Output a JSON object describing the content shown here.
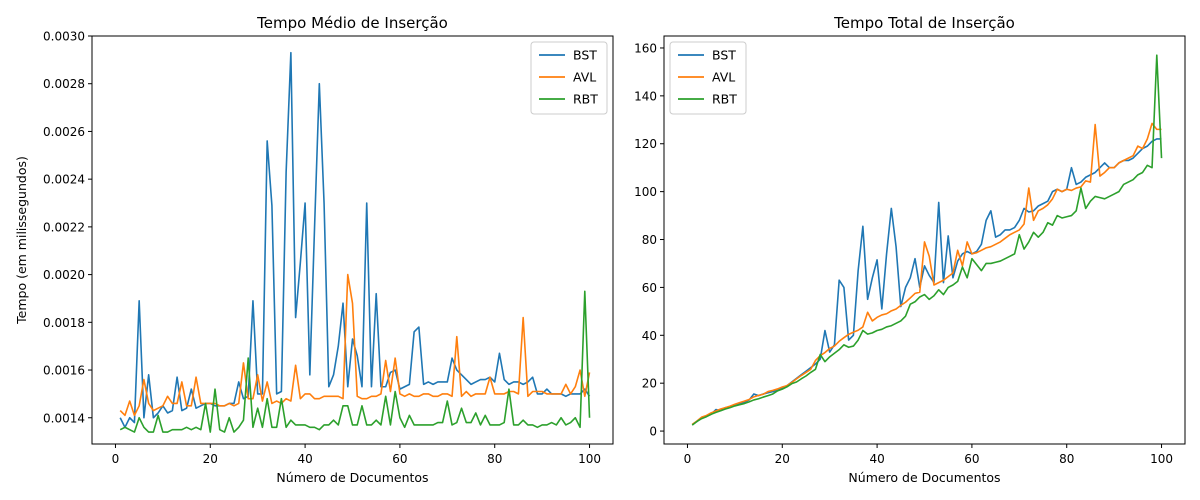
{
  "chart_data": [
    {
      "type": "line",
      "title": "Tempo Médio de Inserção",
      "xlabel": "Número de Documentos",
      "ylabel": "Tempo (em milissegundos)",
      "xlim": [
        -4.95,
        104.95
      ],
      "ylim": [
        0.00129,
        0.003
      ],
      "xticks": [
        0,
        20,
        40,
        60,
        80,
        100
      ],
      "xtick_labels": [
        "0",
        "20",
        "40",
        "60",
        "80",
        "100"
      ],
      "yticks": [
        0.0014,
        0.0016,
        0.0018,
        0.002,
        0.0022,
        0.0024,
        0.0026,
        0.0028,
        0.003
      ],
      "ytick_labels": [
        "0.0014",
        "0.0016",
        "0.0018",
        "0.0020",
        "0.0022",
        "0.0024",
        "0.0026",
        "0.0028",
        "0.0030"
      ],
      "legend_position": "top-right",
      "grid": false,
      "x": [
        1,
        2,
        3,
        4,
        5,
        6,
        7,
        8,
        9,
        10,
        11,
        12,
        13,
        14,
        15,
        16,
        17,
        18,
        19,
        20,
        21,
        22,
        23,
        24,
        25,
        26,
        27,
        28,
        29,
        30,
        31,
        32,
        33,
        34,
        35,
        36,
        37,
        38,
        39,
        40,
        41,
        42,
        43,
        44,
        45,
        46,
        47,
        48,
        49,
        50,
        51,
        52,
        53,
        54,
        55,
        56,
        57,
        58,
        59,
        60,
        61,
        62,
        63,
        64,
        65,
        66,
        67,
        68,
        69,
        70,
        71,
        72,
        73,
        74,
        75,
        76,
        77,
        78,
        79,
        80,
        81,
        82,
        83,
        84,
        85,
        86,
        87,
        88,
        89,
        90,
        91,
        92,
        93,
        94,
        95,
        96,
        97,
        98,
        99,
        100
      ],
      "series": [
        {
          "name": "BST",
          "color": "#1f77b4",
          "values": [
            0.0014,
            0.00136,
            0.0014,
            0.00138,
            0.00189,
            0.0014,
            0.00158,
            0.0014,
            0.00142,
            0.00145,
            0.00142,
            0.00143,
            0.00157,
            0.00143,
            0.00144,
            0.00152,
            0.00144,
            0.00145,
            0.00146,
            0.00146,
            0.00145,
            0.00145,
            0.00145,
            0.00146,
            0.00146,
            0.00155,
            0.00148,
            0.00149,
            0.00189,
            0.0015,
            0.0015,
            0.00256,
            0.00229,
            0.0015,
            0.00151,
            0.00243,
            0.00293,
            0.00182,
            0.00205,
            0.0023,
            0.00158,
            0.0022,
            0.0028,
            0.0023,
            0.00153,
            0.00158,
            0.0017,
            0.00188,
            0.00153,
            0.00173,
            0.00166,
            0.00153,
            0.0023,
            0.00153,
            0.00192,
            0.00153,
            0.00153,
            0.00159,
            0.0016,
            0.00152,
            0.00153,
            0.00154,
            0.00176,
            0.00178,
            0.00154,
            0.00155,
            0.00154,
            0.00155,
            0.00155,
            0.00155,
            0.00165,
            0.0016,
            0.00158,
            0.00156,
            0.00154,
            0.00155,
            0.00156,
            0.00156,
            0.00157,
            0.00155,
            0.00167,
            0.00156,
            0.00154,
            0.00155,
            0.00155,
            0.00154,
            0.00155,
            0.00157,
            0.0015,
            0.0015,
            0.00152,
            0.0015,
            0.0015,
            0.0015,
            0.00149,
            0.0015,
            0.0015,
            0.0015,
            0.00152,
            0.00149
          ]
        },
        {
          "name": "AVL",
          "color": "#ff7f0e",
          "values": [
            0.00143,
            0.00141,
            0.00147,
            0.00141,
            0.00145,
            0.00156,
            0.00146,
            0.00143,
            0.00144,
            0.00145,
            0.00149,
            0.00146,
            0.00146,
            0.00155,
            0.00145,
            0.00145,
            0.00157,
            0.00146,
            0.00146,
            0.00146,
            0.00146,
            0.00145,
            0.00145,
            0.00146,
            0.00145,
            0.00146,
            0.00163,
            0.00148,
            0.00148,
            0.00158,
            0.00147,
            0.00155,
            0.00146,
            0.00147,
            0.00146,
            0.00148,
            0.00147,
            0.00162,
            0.00148,
            0.0015,
            0.0015,
            0.00148,
            0.00148,
            0.00149,
            0.00149,
            0.00149,
            0.00149,
            0.00148,
            0.002,
            0.00188,
            0.00149,
            0.00148,
            0.00148,
            0.00149,
            0.00149,
            0.0015,
            0.00164,
            0.00151,
            0.00165,
            0.0015,
            0.00149,
            0.0015,
            0.00149,
            0.00149,
            0.0015,
            0.0015,
            0.00149,
            0.00149,
            0.0015,
            0.0015,
            0.00149,
            0.00174,
            0.00149,
            0.00151,
            0.00149,
            0.0015,
            0.0015,
            0.0015,
            0.00157,
            0.0015,
            0.0015,
            0.0015,
            0.00151,
            0.00151,
            0.0015,
            0.00182,
            0.00149,
            0.00151,
            0.00151,
            0.00151,
            0.0015,
            0.0015,
            0.0015,
            0.0015,
            0.00154,
            0.0015,
            0.00153,
            0.0016,
            0.00149,
            0.00159
          ]
        },
        {
          "name": "RBT",
          "color": "#2ca02c",
          "values": [
            0.00135,
            0.00136,
            0.00135,
            0.00134,
            0.0014,
            0.00136,
            0.00134,
            0.00134,
            0.00141,
            0.00134,
            0.00134,
            0.00135,
            0.00135,
            0.00135,
            0.00136,
            0.00135,
            0.00136,
            0.00135,
            0.00146,
            0.00134,
            0.00152,
            0.00135,
            0.00134,
            0.0014,
            0.00134,
            0.00136,
            0.00139,
            0.00165,
            0.00136,
            0.00144,
            0.00136,
            0.00148,
            0.00136,
            0.00136,
            0.00148,
            0.00136,
            0.00139,
            0.00137,
            0.00137,
            0.00137,
            0.00136,
            0.00136,
            0.00135,
            0.00137,
            0.00137,
            0.00139,
            0.00137,
            0.00145,
            0.00145,
            0.00137,
            0.00137,
            0.00145,
            0.00137,
            0.00137,
            0.00139,
            0.00137,
            0.00149,
            0.00137,
            0.00151,
            0.0014,
            0.00136,
            0.00141,
            0.00137,
            0.00137,
            0.00137,
            0.00137,
            0.00137,
            0.00138,
            0.00138,
            0.00147,
            0.00137,
            0.00138,
            0.00144,
            0.00138,
            0.00138,
            0.00142,
            0.00137,
            0.00141,
            0.00137,
            0.00137,
            0.00137,
            0.00138,
            0.00152,
            0.00137,
            0.00137,
            0.00139,
            0.00137,
            0.00137,
            0.00136,
            0.00137,
            0.00137,
            0.00138,
            0.00137,
            0.0014,
            0.00137,
            0.00138,
            0.0014,
            0.00136,
            0.00193,
            0.0014
          ]
        }
      ]
    },
    {
      "type": "line",
      "title": "Tempo Total de Inserção",
      "xlabel": "Número de Documentos",
      "ylabel": "",
      "xlim": [
        -4.95,
        104.95
      ],
      "ylim": [
        -5.4,
        165
      ],
      "xticks": [
        0,
        20,
        40,
        60,
        80,
        100
      ],
      "xtick_labels": [
        "0",
        "20",
        "40",
        "60",
        "80",
        "100"
      ],
      "yticks": [
        0,
        20,
        40,
        60,
        80,
        100,
        120,
        140,
        160
      ],
      "ytick_labels": [
        "0",
        "20",
        "40",
        "60",
        "80",
        "100",
        "120",
        "140",
        "160"
      ],
      "legend_position": "top-left",
      "grid": false,
      "x": [
        1,
        2,
        3,
        4,
        5,
        6,
        7,
        8,
        9,
        10,
        11,
        12,
        13,
        14,
        15,
        16,
        17,
        18,
        19,
        20,
        21,
        22,
        23,
        24,
        25,
        26,
        27,
        28,
        29,
        30,
        31,
        32,
        33,
        34,
        35,
        36,
        37,
        38,
        39,
        40,
        41,
        42,
        43,
        44,
        45,
        46,
        47,
        48,
        49,
        50,
        51,
        52,
        53,
        54,
        55,
        56,
        57,
        58,
        59,
        60,
        61,
        62,
        63,
        64,
        65,
        66,
        67,
        68,
        69,
        70,
        71,
        72,
        73,
        74,
        75,
        76,
        77,
        78,
        79,
        80,
        81,
        82,
        83,
        84,
        85,
        86,
        87,
        88,
        89,
        90,
        91,
        92,
        93,
        94,
        95,
        96,
        97,
        98,
        99,
        100
      ],
      "series": [
        {
          "name": "BST",
          "color": "#1f77b4",
          "values": [
            2.7,
            4.0,
            5.6,
            6.2,
            7.0,
            9.0,
            8.5,
            9.8,
            10.0,
            11.0,
            11.5,
            12.0,
            13.0,
            15.5,
            14.8,
            15.5,
            16.0,
            16.5,
            17.0,
            18.0,
            19.0,
            20.5,
            22.0,
            23.5,
            25.0,
            26.5,
            28.0,
            30.0,
            42.0,
            33.0,
            36.0,
            63.0,
            60.0,
            38.0,
            40.0,
            67.0,
            85.5,
            55.0,
            64.0,
            71.5,
            51.0,
            74.0,
            93.0,
            77.0,
            52.0,
            60.0,
            64.0,
            72.0,
            60.0,
            69.0,
            65.0,
            62.0,
            95.5,
            62.0,
            81.5,
            64.0,
            71.0,
            74.0,
            75.0,
            74.0,
            75.0,
            78.0,
            88.0,
            92.0,
            81.0,
            82.0,
            84.0,
            84.0,
            85.0,
            88.0,
            93.0,
            91.5,
            92.0,
            94.0,
            95.0,
            96.0,
            100.0,
            101.0,
            100.0,
            101.0,
            110.0,
            103.0,
            104.0,
            106.0,
            107.0,
            108.0,
            110.0,
            112.0,
            110.0,
            110.0,
            112.0,
            113.0,
            113.0,
            114.0,
            116.0,
            118.0,
            119.0,
            121.0,
            122.0,
            122.0
          ]
        },
        {
          "name": "AVL",
          "color": "#ff7f0e",
          "values": [
            2.8,
            4.2,
            5.8,
            6.5,
            7.6,
            8.4,
            9.2,
            9.8,
            10.4,
            11.2,
            11.9,
            12.5,
            13.2,
            14.3,
            14.9,
            15.4,
            16.5,
            17.0,
            17.6,
            18.4,
            19.0,
            20.3,
            21.8,
            23.2,
            24.5,
            25.8,
            29.5,
            31.5,
            32.8,
            34.5,
            35.5,
            37.5,
            39.0,
            40.4,
            41.3,
            42.1,
            43.5,
            49.6,
            46.0,
            47.5,
            48.5,
            49.0,
            50.2,
            51.0,
            52.5,
            53.8,
            55.6,
            57.5,
            58.0,
            79.0,
            73.0,
            61.0,
            62.0,
            63.0,
            64.5,
            66.0,
            75.5,
            69.0,
            79.0,
            74.0,
            74.5,
            75.5,
            76.5,
            77.0,
            78.0,
            79.0,
            80.5,
            82.0,
            83.0,
            84.0,
            86.5,
            101.5,
            88.0,
            92.0,
            93.0,
            94.5,
            97.0,
            101.0,
            100.0,
            101.0,
            100.5,
            101.5,
            102.0,
            104.5,
            104.0,
            128.0,
            106.5,
            108.0,
            110.0,
            110.0,
            112.0,
            113.0,
            114.0,
            115.0,
            119.0,
            118.0,
            122.0,
            128.5,
            126.0,
            126.0
          ]
        },
        {
          "name": "RBT",
          "color": "#2ca02c",
          "values": [
            2.5,
            4.0,
            5.2,
            6.0,
            7.0,
            7.8,
            8.5,
            9.2,
            9.8,
            10.5,
            11.0,
            11.5,
            12.2,
            13.0,
            13.5,
            14.2,
            14.8,
            15.5,
            16.8,
            17.5,
            18.5,
            19.8,
            20.5,
            21.8,
            23.0,
            24.5,
            25.8,
            32.0,
            29.0,
            31.0,
            32.5,
            34.0,
            36.0,
            35.0,
            35.5,
            38.0,
            42.0,
            40.5,
            41.0,
            42.0,
            42.5,
            43.5,
            44.0,
            45.0,
            46.0,
            48.0,
            53.0,
            54.0,
            56.0,
            57.0,
            55.0,
            56.5,
            59.0,
            57.0,
            60.0,
            61.0,
            62.5,
            68.5,
            64.0,
            72.0,
            69.5,
            67.0,
            70.0,
            70.0,
            70.5,
            71.0,
            72.0,
            73.0,
            74.0,
            82.0,
            76.0,
            79.0,
            83.0,
            81.0,
            83.0,
            87.0,
            86.0,
            90.0,
            89.0,
            89.5,
            90.0,
            92.0,
            101.5,
            93.0,
            96.0,
            98.0,
            97.5,
            97.0,
            98.0,
            99.0,
            100.0,
            103.0,
            104.0,
            105.0,
            107.0,
            108.0,
            111.0,
            110.0,
            157.0,
            114.0
          ]
        }
      ]
    }
  ]
}
